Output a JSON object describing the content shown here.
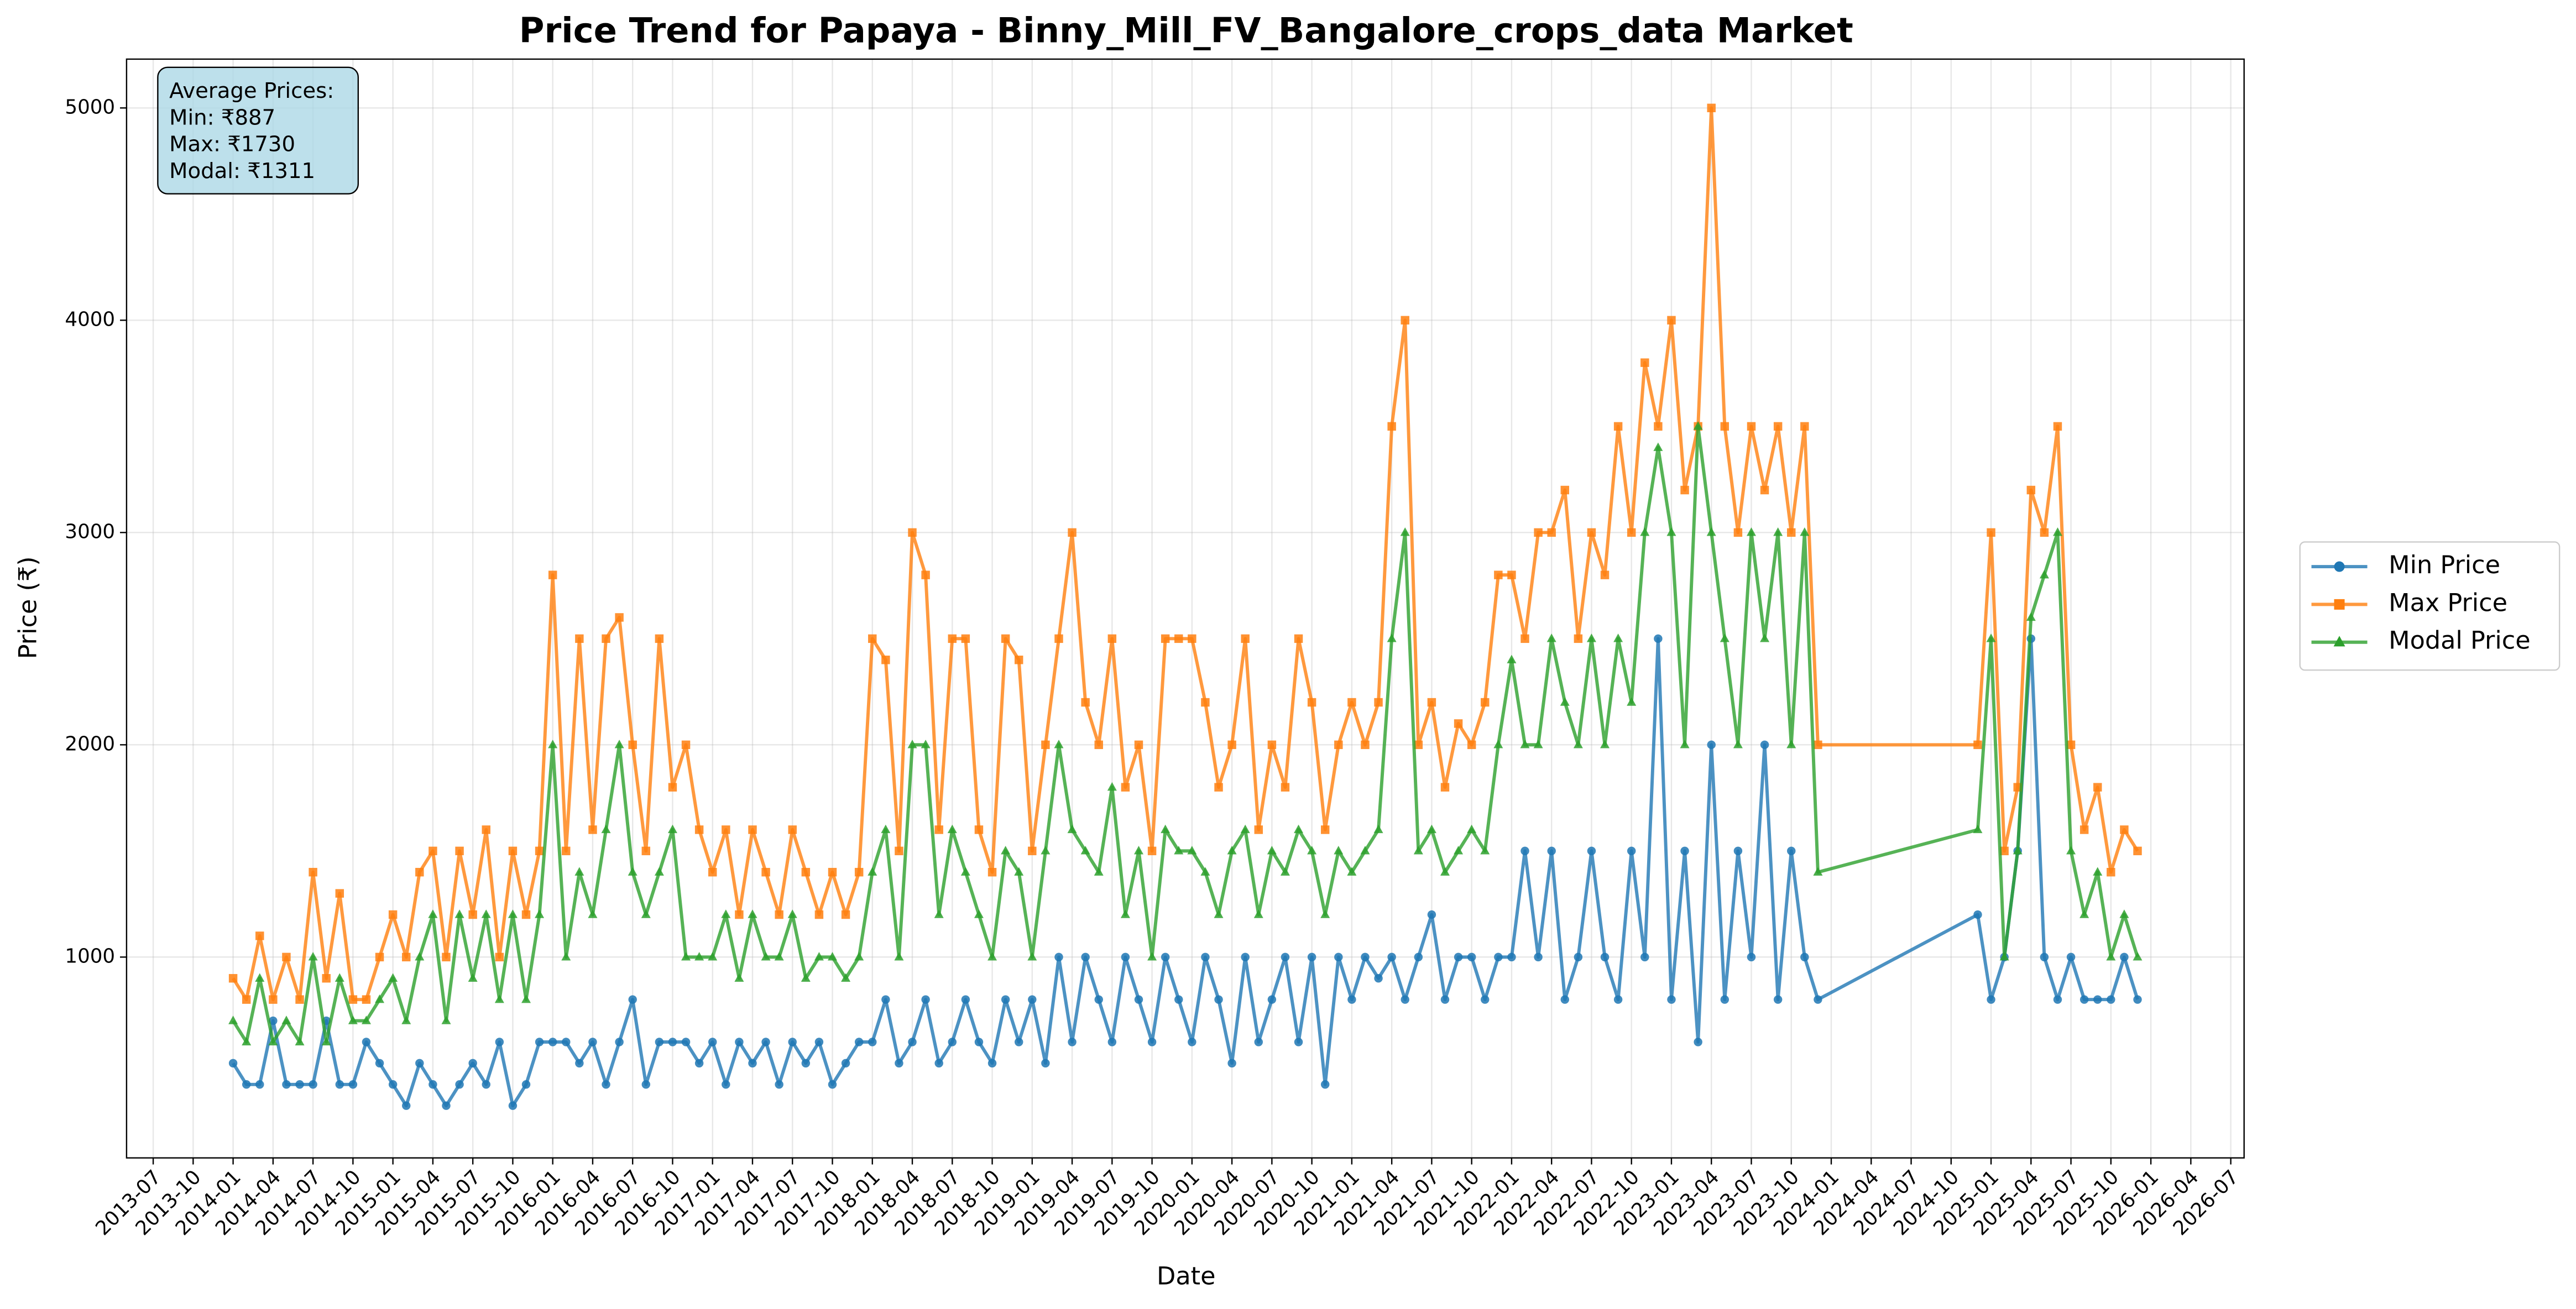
{
  "chart_data": {
    "type": "line",
    "title": "Price Trend for Papaya - Binny_Mill_FV_Bangalore_crops_data Market",
    "x_label": "Date",
    "y_label": "Price (₹)",
    "annotation": [
      "Average Prices:",
      "Min: ₹887",
      "Max: ₹1730",
      "Modal: ₹1311"
    ],
    "x": [
      "2014-01",
      "2014-02",
      "2014-03",
      "2014-04",
      "2014-05",
      "2014-06",
      "2014-07",
      "2014-08",
      "2014-09",
      "2014-10",
      "2014-11",
      "2014-12",
      "2015-01",
      "2015-02",
      "2015-03",
      "2015-04",
      "2015-05",
      "2015-06",
      "2015-07",
      "2015-08",
      "2015-09",
      "2015-10",
      "2015-11",
      "2015-12",
      "2016-01",
      "2016-02",
      "2016-03",
      "2016-04",
      "2016-05",
      "2016-06",
      "2016-07",
      "2016-08",
      "2016-09",
      "2016-10",
      "2016-11",
      "2016-12",
      "2017-01",
      "2017-02",
      "2017-03",
      "2017-04",
      "2017-05",
      "2017-06",
      "2017-07",
      "2017-08",
      "2017-09",
      "2017-10",
      "2017-11",
      "2017-12",
      "2018-01",
      "2018-02",
      "2018-03",
      "2018-04",
      "2018-05",
      "2018-06",
      "2018-07",
      "2018-08",
      "2018-09",
      "2018-10",
      "2018-11",
      "2018-12",
      "2019-01",
      "2019-02",
      "2019-03",
      "2019-04",
      "2019-05",
      "2019-06",
      "2019-07",
      "2019-08",
      "2019-09",
      "2019-10",
      "2019-11",
      "2019-12",
      "2020-01",
      "2020-02",
      "2020-03",
      "2020-04",
      "2020-05",
      "2020-06",
      "2020-07",
      "2020-08",
      "2020-09",
      "2020-10",
      "2020-11",
      "2020-12",
      "2021-01",
      "2021-02",
      "2021-03",
      "2021-04",
      "2021-05",
      "2021-06",
      "2021-07",
      "2021-08",
      "2021-09",
      "2021-10",
      "2021-11",
      "2021-12",
      "2022-01",
      "2022-02",
      "2022-03",
      "2022-04",
      "2022-05",
      "2022-06",
      "2022-07",
      "2022-08",
      "2022-09",
      "2022-10",
      "2022-11",
      "2022-12",
      "2023-01",
      "2023-02",
      "2023-03",
      "2023-04",
      "2023-05",
      "2023-06",
      "2023-07",
      "2023-08",
      "2023-09",
      "2023-10",
      "2023-11",
      "2023-12",
      "2024-12",
      "2025-01",
      "2025-02",
      "2025-03",
      "2025-04",
      "2025-05",
      "2025-06",
      "2025-07",
      "2025-08",
      "2025-09",
      "2025-10",
      "2025-11",
      "2025-12"
    ],
    "series": [
      {
        "name": "Min Price",
        "color": "#1f77b4",
        "marker": "circle",
        "values": [
          500,
          400,
          400,
          700,
          400,
          400,
          400,
          700,
          400,
          400,
          600,
          500,
          400,
          300,
          500,
          400,
          300,
          400,
          500,
          400,
          600,
          300,
          400,
          600,
          600,
          600,
          500,
          600,
          400,
          600,
          800,
          400,
          600,
          600,
          600,
          500,
          600,
          400,
          600,
          500,
          600,
          400,
          600,
          500,
          600,
          400,
          500,
          600,
          600,
          800,
          500,
          600,
          800,
          500,
          600,
          800,
          600,
          500,
          800,
          600,
          800,
          500,
          1000,
          600,
          1000,
          800,
          600,
          1000,
          800,
          600,
          1000,
          800,
          600,
          1000,
          800,
          500,
          1000,
          600,
          800,
          1000,
          600,
          1000,
          400,
          1000,
          800,
          1000,
          900,
          1000,
          800,
          1000,
          1200,
          800,
          1000,
          1000,
          800,
          1000,
          1000,
          1500,
          1000,
          1500,
          800,
          1000,
          1500,
          1000,
          800,
          1500,
          1000,
          2500,
          800,
          1500,
          600,
          2000,
          800,
          1500,
          1000,
          2000,
          800,
          1500,
          1000,
          800,
          1200,
          800,
          1000,
          1500,
          2500,
          1000,
          800,
          1000,
          800,
          800,
          800,
          1000,
          800
        ]
      },
      {
        "name": "Max Price",
        "color": "#ff7f0e",
        "marker": "square",
        "values": [
          900,
          800,
          1100,
          800,
          1000,
          800,
          1400,
          900,
          1300,
          800,
          800,
          1000,
          1200,
          1000,
          1400,
          1500,
          1000,
          1500,
          1200,
          1600,
          1000,
          1500,
          1200,
          1500,
          2800,
          1500,
          2500,
          1600,
          2500,
          2600,
          2000,
          1500,
          2500,
          1800,
          2000,
          1600,
          1400,
          1600,
          1200,
          1600,
          1400,
          1200,
          1600,
          1400,
          1200,
          1400,
          1200,
          1400,
          2500,
          2400,
          1500,
          3000,
          2800,
          1600,
          2500,
          2500,
          1600,
          1400,
          2500,
          2400,
          1500,
          2000,
          2500,
          3000,
          2200,
          2000,
          2500,
          1800,
          2000,
          1500,
          2500,
          2500,
          2500,
          2200,
          1800,
          2000,
          2500,
          1600,
          2000,
          1800,
          2500,
          2200,
          1600,
          2000,
          2200,
          2000,
          2200,
          3500,
          4000,
          2000,
          2200,
          1800,
          2100,
          2000,
          2200,
          2800,
          2800,
          2500,
          3000,
          3000,
          3200,
          2500,
          3000,
          2800,
          3500,
          3000,
          3800,
          3500,
          4000,
          3200,
          3500,
          5000,
          3500,
          3000,
          3500,
          3200,
          3500,
          3000,
          3500,
          2000,
          2000,
          3000,
          1500,
          1800,
          3200,
          3000,
          3500,
          2000,
          1600,
          1800,
          1400,
          1600,
          1500
        ]
      },
      {
        "name": "Modal Price",
        "color": "#2ca02c",
        "marker": "triangle",
        "values": [
          700,
          600,
          900,
          600,
          700,
          600,
          1000,
          600,
          900,
          700,
          700,
          800,
          900,
          700,
          1000,
          1200,
          700,
          1200,
          900,
          1200,
          800,
          1200,
          800,
          1200,
          2000,
          1000,
          1400,
          1200,
          1600,
          2000,
          1400,
          1200,
          1400,
          1600,
          1000,
          1000,
          1000,
          1200,
          900,
          1200,
          1000,
          1000,
          1200,
          900,
          1000,
          1000,
          900,
          1000,
          1400,
          1600,
          1000,
          2000,
          2000,
          1200,
          1600,
          1400,
          1200,
          1000,
          1500,
          1400,
          1000,
          1500,
          2000,
          1600,
          1500,
          1400,
          1800,
          1200,
          1500,
          1000,
          1600,
          1500,
          1500,
          1400,
          1200,
          1500,
          1600,
          1200,
          1500,
          1400,
          1600,
          1500,
          1200,
          1500,
          1400,
          1500,
          1600,
          2500,
          3000,
          1500,
          1600,
          1400,
          1500,
          1600,
          1500,
          2000,
          2400,
          2000,
          2000,
          2500,
          2200,
          2000,
          2500,
          2000,
          2500,
          2200,
          3000,
          3400,
          3000,
          2000,
          3500,
          3000,
          2500,
          2000,
          3000,
          2500,
          3000,
          2000,
          3000,
          1400,
          1600,
          2500,
          1000,
          1500,
          2600,
          2800,
          3000,
          1500,
          1200,
          1400,
          1000,
          1200,
          1000
        ]
      }
    ],
    "xlim": [
      "2013-05",
      "2026-08"
    ],
    "xticks": [
      "2013-07",
      "2013-10",
      "2014-01",
      "2014-04",
      "2014-07",
      "2014-10",
      "2015-01",
      "2015-04",
      "2015-07",
      "2015-10",
      "2016-01",
      "2016-04",
      "2016-07",
      "2016-10",
      "2017-01",
      "2017-04",
      "2017-07",
      "2017-10",
      "2018-01",
      "2018-04",
      "2018-07",
      "2018-10",
      "2019-01",
      "2019-04",
      "2019-07",
      "2019-10",
      "2020-01",
      "2020-04",
      "2020-07",
      "2020-10",
      "2021-01",
      "2021-04",
      "2021-07",
      "2021-10",
      "2022-01",
      "2022-04",
      "2022-07",
      "2022-10",
      "2023-01",
      "2023-04",
      "2023-07",
      "2023-10",
      "2024-01",
      "2024-04",
      "2024-07",
      "2024-10",
      "2025-01",
      "2025-04",
      "2025-07",
      "2025-10",
      "2026-01",
      "2026-04",
      "2026-07"
    ],
    "ylim": [
      54,
      5230
    ],
    "yticks": [
      1000,
      2000,
      3000,
      4000,
      5000
    ],
    "grid": true,
    "legend": "outside right"
  }
}
